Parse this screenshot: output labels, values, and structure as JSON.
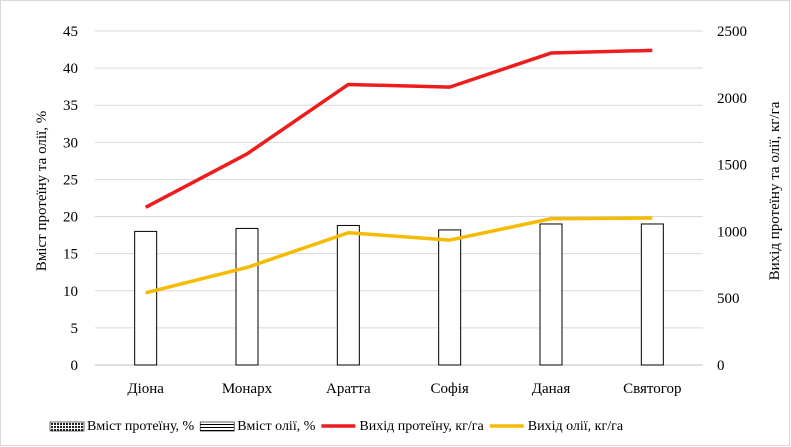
{
  "chart_data": {
    "type": "bar",
    "categories": [
      "Діона",
      "Монарх",
      "Аратта",
      "Софія",
      "Даная",
      "Святогор"
    ],
    "ylabel": "Вміст протеїну та олії, %",
    "ylabel_right": "Вихід протеїну та олії, кг/га",
    "ylim": [
      0,
      45
    ],
    "ylim_right": [
      0,
      2500
    ],
    "yticks": [
      "0",
      "5",
      "10",
      "15",
      "20",
      "25",
      "30",
      "35",
      "40",
      "45"
    ],
    "yticks_right": [
      "0",
      "500",
      "1000",
      "1500",
      "2000",
      "2500"
    ],
    "grid": true,
    "legend_position": "bottom",
    "series": [
      {
        "name": "Вміст протеїну, %",
        "type": "bar",
        "axis": "left",
        "values": [
          null,
          null,
          null,
          null,
          null,
          null
        ],
        "color": "#555555"
      },
      {
        "name": "Вміст олії, %",
        "type": "bar",
        "axis": "left",
        "values": [
          18.0,
          18.4,
          18.8,
          18.2,
          19.0,
          19.0
        ],
        "color": "#000000"
      },
      {
        "name": "Вихід  протеїну, кг/га",
        "type": "line",
        "axis": "right",
        "values": [
          1180,
          1580,
          2100,
          2080,
          2335,
          2355
        ],
        "color": "#ee1c1c"
      },
      {
        "name": "Вихід  олії, кг/га",
        "type": "line",
        "axis": "right",
        "values": [
          540,
          730,
          990,
          935,
          1095,
          1100
        ],
        "color": "#f5bb00"
      }
    ]
  }
}
